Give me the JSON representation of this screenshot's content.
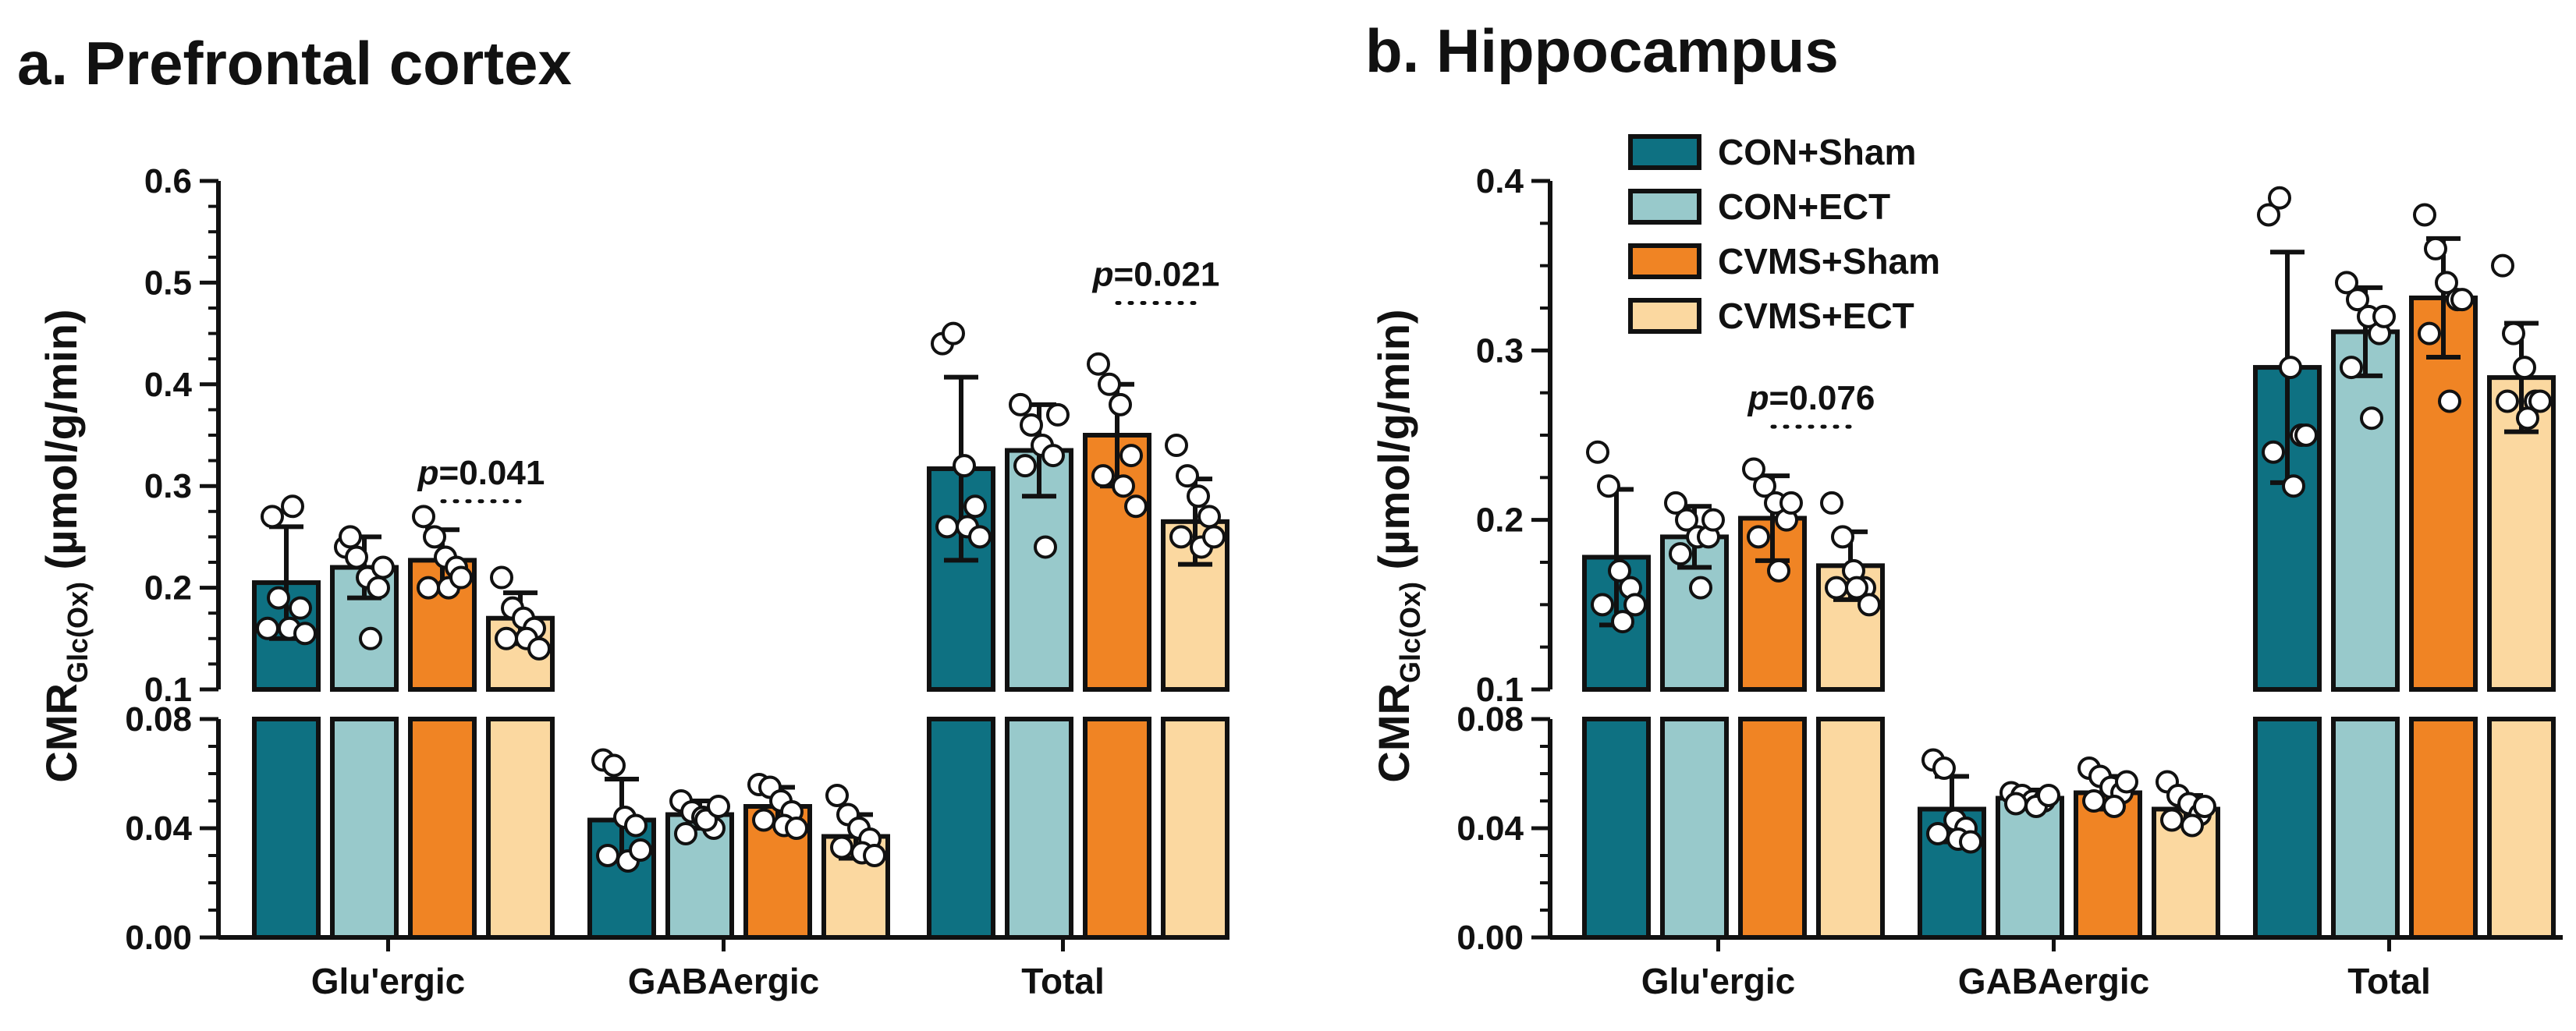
{
  "chart_data": [
    {
      "type": "bar",
      "panel": "a",
      "title": "a. Prefrontal cortex",
      "ylabel": "CMR",
      "ylabel_sub": "Glc(Ox)",
      "ylabel_units": " (µmol/g/min)",
      "categories": [
        "Glu'ergic",
        "GABAergic",
        "Total"
      ],
      "axis_break": true,
      "ylim_lower": [
        0,
        0.08
      ],
      "ylim_upper": [
        0.1,
        0.6
      ],
      "yticks_lower": [
        "0.00",
        "0.04",
        "0.08"
      ],
      "yticks_upper": [
        "0.1",
        "0.2",
        "0.3",
        "0.4",
        "0.5",
        "0.6"
      ],
      "series": [
        {
          "name": "CON+Sham",
          "color": "#0e7182",
          "values": [
            0.205,
            0.043,
            0.317
          ],
          "sd": [
            0.055,
            0.015,
            0.09
          ],
          "points": [
            [
              0.16,
              0.19,
              0.16,
              0.18,
              0.27,
              0.28,
              0.155
            ],
            [
              0.065,
              0.063,
              0.044,
              0.041,
              0.03,
              0.028,
              0.032
            ],
            [
              0.44,
              0.45,
              0.32,
              0.28,
              0.26,
              0.26,
              0.25
            ]
          ]
        },
        {
          "name": "CON+ECT",
          "color": "#98c9cb",
          "values": [
            0.22,
            0.045,
            0.335
          ],
          "sd": [
            0.03,
            0.005,
            0.045
          ],
          "points": [
            [
              0.24,
              0.23,
              0.21,
              0.2,
              0.25,
              0.15,
              0.22
            ],
            [
              0.05,
              0.046,
              0.044,
              0.04,
              0.038,
              0.043,
              0.048
            ],
            [
              0.38,
              0.36,
              0.34,
              0.33,
              0.32,
              0.24,
              0.37
            ]
          ]
        },
        {
          "name": "CVMS+Sham",
          "color": "#f08424",
          "values": [
            0.227,
            0.048,
            0.35
          ],
          "sd": [
            0.03,
            0.007,
            0.05
          ],
          "points": [
            [
              0.27,
              0.25,
              0.23,
              0.22,
              0.2,
              0.2,
              0.21
            ],
            [
              0.056,
              0.055,
              0.05,
              0.046,
              0.043,
              0.041,
              0.04
            ],
            [
              0.42,
              0.4,
              0.38,
              0.33,
              0.31,
              0.3,
              0.28
            ]
          ]
        },
        {
          "name": "CVMS+ECT",
          "color": "#fbd8a0",
          "values": [
            0.17,
            0.037,
            0.265
          ],
          "sd": [
            0.025,
            0.008,
            0.042
          ],
          "points": [
            [
              0.21,
              0.18,
              0.17,
              0.16,
              0.15,
              0.15,
              0.14
            ],
            [
              0.052,
              0.045,
              0.04,
              0.036,
              0.033,
              0.031,
              0.03
            ],
            [
              0.34,
              0.31,
              0.29,
              0.27,
              0.25,
              0.24,
              0.25
            ]
          ]
        }
      ],
      "annotations": [
        {
          "label_p": "p",
          "label_rest": "=0.041",
          "category": 0,
          "from_series": 2,
          "to_series": 3,
          "y": 0.285
        },
        {
          "label_p": "p",
          "label_rest": "=0.021",
          "category": 2,
          "from_series": 2,
          "to_series": 3,
          "y": 0.48
        }
      ]
    },
    {
      "type": "bar",
      "panel": "b",
      "title": "b. Hippocampus",
      "ylabel": "CMR",
      "ylabel_sub": "Glc(Ox)",
      "ylabel_units": " (µmol/g/min)",
      "categories": [
        "Glu'ergic",
        "GABAergic",
        "Total"
      ],
      "axis_break": true,
      "ylim_lower": [
        0,
        0.08
      ],
      "ylim_upper": [
        0.1,
        0.4
      ],
      "yticks_lower": [
        "0.00",
        "0.04",
        "0.08"
      ],
      "yticks_upper": [
        "0.1",
        "0.2",
        "0.3",
        "0.4"
      ],
      "series": [
        {
          "name": "CON+Sham",
          "color": "#0e7182",
          "values": [
            0.178,
            0.047,
            0.29
          ],
          "sd": [
            0.04,
            0.012,
            0.068
          ],
          "points": [
            [
              0.24,
              0.22,
              0.17,
              0.16,
              0.15,
              0.14,
              0.15
            ],
            [
              0.065,
              0.062,
              0.043,
              0.04,
              0.038,
              0.036,
              0.035
            ],
            [
              0.38,
              0.39,
              0.29,
              0.25,
              0.24,
              0.22,
              0.25
            ]
          ]
        },
        {
          "name": "CON+ECT",
          "color": "#98c9cb",
          "values": [
            0.19,
            0.051,
            0.311
          ],
          "sd": [
            0.018,
            0.003,
            0.026
          ],
          "points": [
            [
              0.21,
              0.2,
              0.19,
              0.19,
              0.18,
              0.16,
              0.2
            ],
            [
              0.053,
              0.052,
              0.05,
              0.05,
              0.049,
              0.048,
              0.052
            ],
            [
              0.34,
              0.33,
              0.32,
              0.31,
              0.29,
              0.26,
              0.32
            ]
          ]
        },
        {
          "name": "CVMS+Sham",
          "color": "#f08424",
          "values": [
            0.201,
            0.053,
            0.331
          ],
          "sd": [
            0.025,
            0.006,
            0.035
          ],
          "points": [
            [
              0.23,
              0.22,
              0.21,
              0.2,
              0.19,
              0.17,
              0.21
            ],
            [
              0.062,
              0.059,
              0.055,
              0.053,
              0.05,
              0.048,
              0.057
            ],
            [
              0.38,
              0.36,
              0.34,
              0.33,
              0.31,
              0.27,
              0.33
            ]
          ]
        },
        {
          "name": "CVMS+ECT",
          "color": "#fbd8a0",
          "values": [
            0.173,
            0.047,
            0.284
          ],
          "sd": [
            0.02,
            0.005,
            0.032
          ],
          "points": [
            [
              0.21,
              0.19,
              0.17,
              0.16,
              0.16,
              0.16,
              0.15
            ],
            [
              0.057,
              0.052,
              0.049,
              0.045,
              0.043,
              0.041,
              0.048
            ],
            [
              0.35,
              0.31,
              0.29,
              0.27,
              0.27,
              0.26,
              0.27
            ]
          ]
        }
      ],
      "annotations": [
        {
          "label_p": "p",
          "label_rest": "=0.076",
          "category": 0,
          "from_series": 2,
          "to_series": 3,
          "y": 0.255
        }
      ],
      "legend": {
        "placement": "top-left",
        "entries": [
          "CON+Sham",
          "CON+ECT",
          "CVMS+Sham",
          "CVMS+ECT"
        ]
      }
    }
  ]
}
